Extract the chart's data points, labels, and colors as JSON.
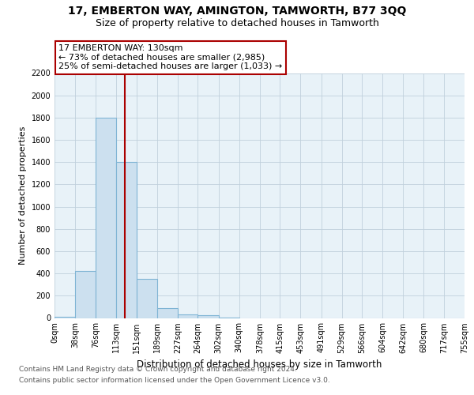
{
  "title": "17, EMBERTON WAY, AMINGTON, TAMWORTH, B77 3QQ",
  "subtitle": "Size of property relative to detached houses in Tamworth",
  "xlabel": "Distribution of detached houses by size in Tamworth",
  "ylabel": "Number of detached properties",
  "property_size": 130,
  "annotation_title": "17 EMBERTON WAY: 130sqm",
  "annotation_line1": "← 73% of detached houses are smaller (2,985)",
  "annotation_line2": "25% of semi-detached houses are larger (1,033) →",
  "footer_line1": "Contains HM Land Registry data © Crown copyright and database right 2024.",
  "footer_line2": "Contains public sector information licensed under the Open Government Licence v3.0.",
  "bar_color": "#cce0ef",
  "bar_edgecolor": "#7fb4d4",
  "vline_color": "#aa0000",
  "annotation_box_edgecolor": "#aa0000",
  "bin_edges": [
    0,
    38,
    76,
    113,
    151,
    189,
    227,
    264,
    302,
    340,
    378,
    415,
    453,
    491,
    529,
    566,
    604,
    642,
    680,
    717,
    755
  ],
  "bin_labels": [
    "0sqm",
    "38sqm",
    "76sqm",
    "113sqm",
    "151sqm",
    "189sqm",
    "227sqm",
    "264sqm",
    "302sqm",
    "340sqm",
    "378sqm",
    "415sqm",
    "453sqm",
    "491sqm",
    "529sqm",
    "566sqm",
    "604sqm",
    "642sqm",
    "680sqm",
    "717sqm",
    "755sqm"
  ],
  "counts": [
    10,
    420,
    1800,
    1400,
    350,
    90,
    30,
    25,
    5,
    0,
    0,
    0,
    0,
    0,
    0,
    0,
    0,
    0,
    0,
    0
  ],
  "ylim": [
    0,
    2200
  ],
  "yticks": [
    0,
    200,
    400,
    600,
    800,
    1000,
    1200,
    1400,
    1600,
    1800,
    2000,
    2200
  ],
  "xlim": [
    0,
    755
  ],
  "background_color": "#ffffff",
  "plot_bg_color": "#e8f2f8",
  "grid_color": "#c0d0dc",
  "title_fontsize": 10,
  "subtitle_fontsize": 9,
  "ylabel_fontsize": 8,
  "xlabel_fontsize": 8.5,
  "tick_fontsize": 7,
  "annotation_fontsize": 8,
  "footer_fontsize": 6.5
}
